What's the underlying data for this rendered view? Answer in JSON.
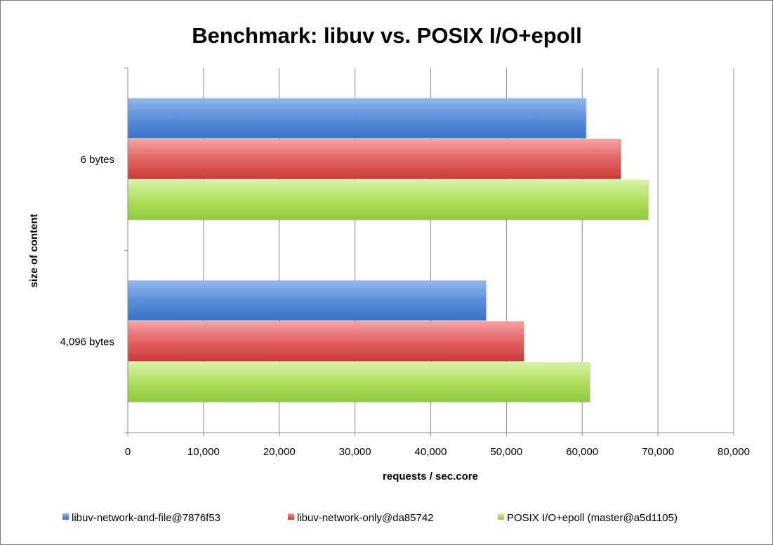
{
  "chart_data": {
    "type": "bar",
    "orientation": "horizontal",
    "title": "Benchmark: libuv vs. POSIX I/O+epoll",
    "xlabel": "requests / sec.core",
    "ylabel": "size of content",
    "xlim": [
      0,
      80000
    ],
    "xticks": [
      0,
      10000,
      20000,
      30000,
      40000,
      50000,
      60000,
      70000,
      80000
    ],
    "xtick_labels": [
      "0",
      "10,000",
      "20,000",
      "30,000",
      "40,000",
      "50,000",
      "60,000",
      "70,000",
      "80,000"
    ],
    "categories": [
      "6 bytes",
      "4,096 bytes"
    ],
    "series": [
      {
        "name": "libuv-network-and-file@7876f53",
        "color": "#4f81bd",
        "values": [
          60500,
          47300
        ]
      },
      {
        "name": "libuv-network-only@da85742",
        "color": "#d94f4f",
        "values": [
          65100,
          52300
        ]
      },
      {
        "name": "POSIX I/O+epoll (master@a5d1105)",
        "color": "#9bd341",
        "values": [
          68700,
          61000
        ]
      }
    ],
    "grid": "vertical",
    "legend": "bottom"
  }
}
